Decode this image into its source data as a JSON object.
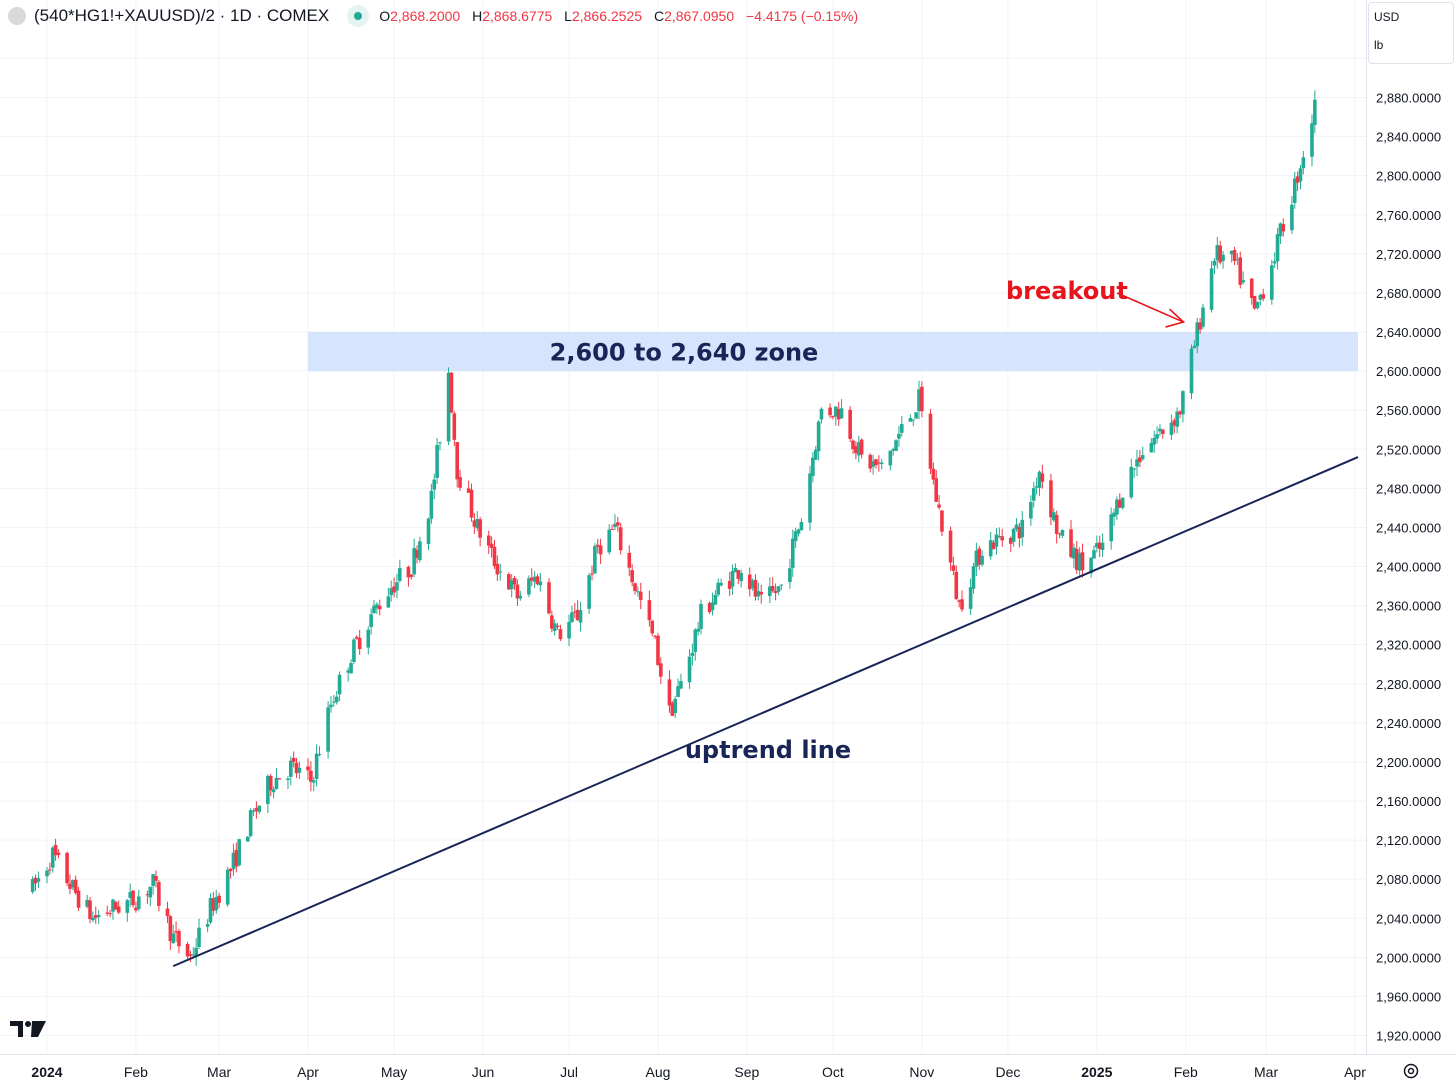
{
  "header": {
    "title": "(540*HG1!+XAUUSD)/2 · 1D · COMEX",
    "o_key": "O",
    "o": "2,868.2000",
    "h_key": "H",
    "h": "2,868.6775",
    "l_key": "L",
    "l": "2,866.2525",
    "c_key": "C",
    "c": "2,867.0950",
    "change": "−4.4175 (−0.15%)"
  },
  "units": {
    "currency": "USD",
    "unit": "lb"
  },
  "colors": {
    "up": "#22ab94",
    "down": "#f23645",
    "zone": "#cfe0fd",
    "trend": "#1a2557",
    "breakout": "#e8141b",
    "grid": "#f0f3fa"
  },
  "chart_data": {
    "type": "candlestick",
    "ylim": [
      1900,
      2920
    ],
    "yticks": [
      "1,920.0000",
      "1,960.0000",
      "2,000.0000",
      "2,040.0000",
      "2,080.0000",
      "2,120.0000",
      "2,160.0000",
      "2,200.0000",
      "2,240.0000",
      "2,280.0000",
      "2,320.0000",
      "2,360.0000",
      "2,400.0000",
      "2,440.0000",
      "2,480.0000",
      "2,520.0000",
      "2,560.0000",
      "2,600.0000",
      "2,640.0000",
      "2,680.0000",
      "2,720.0000",
      "2,760.0000",
      "2,800.0000",
      "2,840.0000",
      "2,880.0000"
    ],
    "ytick_values": [
      1920,
      1960,
      2000,
      2040,
      2080,
      2120,
      2160,
      2200,
      2240,
      2280,
      2320,
      2360,
      2400,
      2440,
      2480,
      2520,
      2560,
      2600,
      2640,
      2680,
      2720,
      2760,
      2800,
      2840,
      2880
    ],
    "xticks": [
      {
        "label": "2024",
        "date": "2024-01-01",
        "bold": true
      },
      {
        "label": "Feb",
        "date": "2024-02-01",
        "bold": false
      },
      {
        "label": "Mar",
        "date": "2024-03-01",
        "bold": false
      },
      {
        "label": "Apr",
        "date": "2024-04-01",
        "bold": false
      },
      {
        "label": "May",
        "date": "2024-05-01",
        "bold": false
      },
      {
        "label": "Jun",
        "date": "2024-06-01",
        "bold": false
      },
      {
        "label": "Jul",
        "date": "2024-07-01",
        "bold": false
      },
      {
        "label": "Aug",
        "date": "2024-08-01",
        "bold": false
      },
      {
        "label": "Sep",
        "date": "2024-09-01",
        "bold": false
      },
      {
        "label": "Oct",
        "date": "2024-10-01",
        "bold": false
      },
      {
        "label": "Nov",
        "date": "2024-11-01",
        "bold": false
      },
      {
        "label": "Dec",
        "date": "2024-12-01",
        "bold": false
      },
      {
        "label": "2025",
        "date": "2025-01-01",
        "bold": true
      },
      {
        "label": "Feb",
        "date": "2025-02-01",
        "bold": false
      },
      {
        "label": "Mar",
        "date": "2025-03-01",
        "bold": false
      },
      {
        "label": "Apr",
        "date": "2025-04-01",
        "bold": false
      }
    ],
    "closing_path": [
      [
        "2023-12-27",
        2070
      ],
      [
        "2024-01-03",
        2105
      ],
      [
        "2024-01-10",
        2070
      ],
      [
        "2024-01-17",
        2040
      ],
      [
        "2024-01-24",
        2050
      ],
      [
        "2024-02-01",
        2060
      ],
      [
        "2024-02-07",
        2075
      ],
      [
        "2024-02-14",
        2020
      ],
      [
        "2024-02-20",
        2000
      ],
      [
        "2024-02-27",
        2050
      ],
      [
        "2024-03-05",
        2090
      ],
      [
        "2024-03-12",
        2140
      ],
      [
        "2024-03-19",
        2180
      ],
      [
        "2024-03-26",
        2195
      ],
      [
        "2024-04-02",
        2180
      ],
      [
        "2024-04-09",
        2260
      ],
      [
        "2024-04-16",
        2310
      ],
      [
        "2024-04-23",
        2350
      ],
      [
        "2024-04-30",
        2380
      ],
      [
        "2024-05-07",
        2400
      ],
      [
        "2024-05-14",
        2470
      ],
      [
        "2024-05-20",
        2600
      ],
      [
        "2024-05-23",
        2500
      ],
      [
        "2024-05-30",
        2440
      ],
      [
        "2024-06-06",
        2400
      ],
      [
        "2024-06-13",
        2370
      ],
      [
        "2024-06-20",
        2390
      ],
      [
        "2024-06-27",
        2330
      ],
      [
        "2024-07-04",
        2350
      ],
      [
        "2024-07-11",
        2420
      ],
      [
        "2024-07-17",
        2440
      ],
      [
        "2024-07-24",
        2380
      ],
      [
        "2024-07-31",
        2320
      ],
      [
        "2024-08-05",
        2250
      ],
      [
        "2024-08-09",
        2280
      ],
      [
        "2024-08-16",
        2350
      ],
      [
        "2024-08-23",
        2380
      ],
      [
        "2024-08-30",
        2400
      ],
      [
        "2024-09-06",
        2360
      ],
      [
        "2024-09-13",
        2380
      ],
      [
        "2024-09-20",
        2450
      ],
      [
        "2024-09-27",
        2560
      ],
      [
        "2024-10-04",
        2560
      ],
      [
        "2024-10-11",
        2510
      ],
      [
        "2024-10-18",
        2500
      ],
      [
        "2024-10-25",
        2540
      ],
      [
        "2024-10-31",
        2570
      ],
      [
        "2024-11-06",
        2470
      ],
      [
        "2024-11-14",
        2360
      ],
      [
        "2024-11-22",
        2420
      ],
      [
        "2024-11-29",
        2430
      ],
      [
        "2024-12-06",
        2440
      ],
      [
        "2024-12-12",
        2500
      ],
      [
        "2024-12-19",
        2430
      ],
      [
        "2024-12-27",
        2400
      ],
      [
        "2025-01-03",
        2420
      ],
      [
        "2025-01-10",
        2480
      ],
      [
        "2025-01-17",
        2520
      ],
      [
        "2025-01-24",
        2540
      ],
      [
        "2025-01-30",
        2560
      ],
      [
        "2025-02-05",
        2640
      ],
      [
        "2025-02-11",
        2720
      ],
      [
        "2025-02-18",
        2710
      ],
      [
        "2025-02-25",
        2660
      ],
      [
        "2025-03-04",
        2720
      ],
      [
        "2025-03-11",
        2790
      ],
      [
        "2025-03-18",
        2870
      ]
    ],
    "zone": {
      "from": 2600,
      "to": 2640,
      "start": "2024-04-01",
      "label": "2,600 to 2,640 zone"
    },
    "uptrend": {
      "start": [
        "2024-02-14",
        1991
      ],
      "end": [
        "2025-04-01",
        2512
      ],
      "label": "uptrend line"
    },
    "breakout": {
      "label": "breakout",
      "point": [
        "2025-02-03",
        2642
      ]
    }
  }
}
